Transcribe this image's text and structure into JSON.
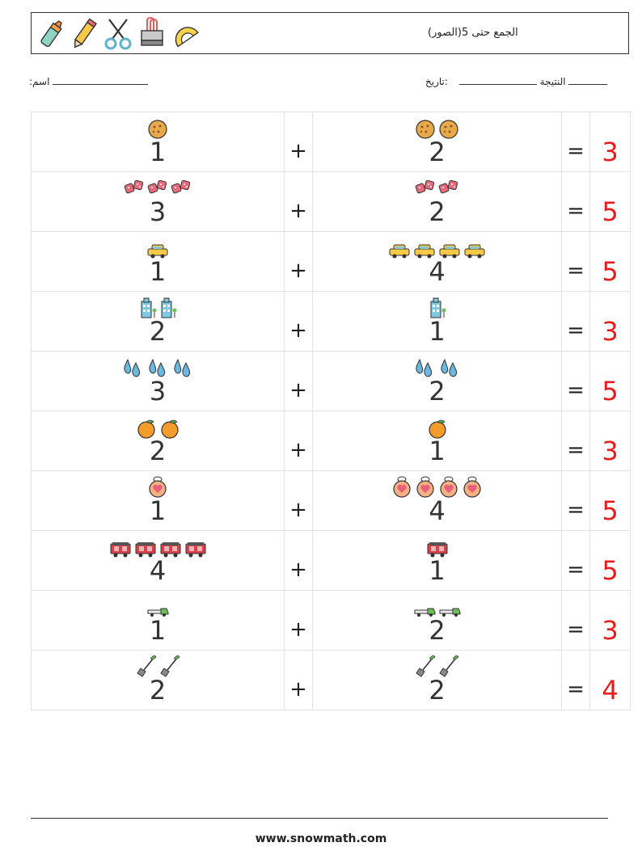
{
  "header": {
    "title": "(الجمع حتى 5(الصور",
    "icons": [
      "marker-icon",
      "pencil-icon",
      "scissors-icon",
      "binder-clip-icon",
      "protractor-icon"
    ]
  },
  "meta": {
    "name_label": ":اسم",
    "date_label": ":تاريخ",
    "result_label": "النتيجة"
  },
  "problems": [
    {
      "a": 1,
      "a_pic": "cookie",
      "b": 2,
      "b_pic": "cookie",
      "plus": "+",
      "eq": "=",
      "answer": 3
    },
    {
      "a": 3,
      "a_pic": "dice",
      "b": 2,
      "b_pic": "dice",
      "plus": "+",
      "eq": "=",
      "answer": 5
    },
    {
      "a": 1,
      "a_pic": "taxi",
      "b": 4,
      "b_pic": "taxi",
      "plus": "+",
      "eq": "=",
      "answer": 5
    },
    {
      "a": 2,
      "a_pic": "building",
      "b": 1,
      "b_pic": "building",
      "plus": "+",
      "eq": "=",
      "answer": 3
    },
    {
      "a": 3,
      "a_pic": "water-drops",
      "b": 2,
      "b_pic": "water-drops",
      "plus": "+",
      "eq": "=",
      "answer": 5
    },
    {
      "a": 2,
      "a_pic": "orange",
      "b": 1,
      "b_pic": "orange",
      "plus": "+",
      "eq": "=",
      "answer": 3
    },
    {
      "a": 1,
      "a_pic": "heart-ring",
      "b": 4,
      "b_pic": "heart-ring",
      "plus": "+",
      "eq": "=",
      "answer": 5
    },
    {
      "a": 4,
      "a_pic": "train-wagon",
      "b": 1,
      "b_pic": "train-wagon",
      "plus": "+",
      "eq": "=",
      "answer": 5
    },
    {
      "a": 1,
      "a_pic": "truck",
      "b": 2,
      "b_pic": "truck",
      "plus": "+",
      "eq": "=",
      "answer": 3
    },
    {
      "a": 2,
      "a_pic": "shovel",
      "b": 2,
      "b_pic": "shovel",
      "plus": "+",
      "eq": "=",
      "answer": 4
    }
  ],
  "footer": {
    "site": "www.snowmath.com"
  }
}
